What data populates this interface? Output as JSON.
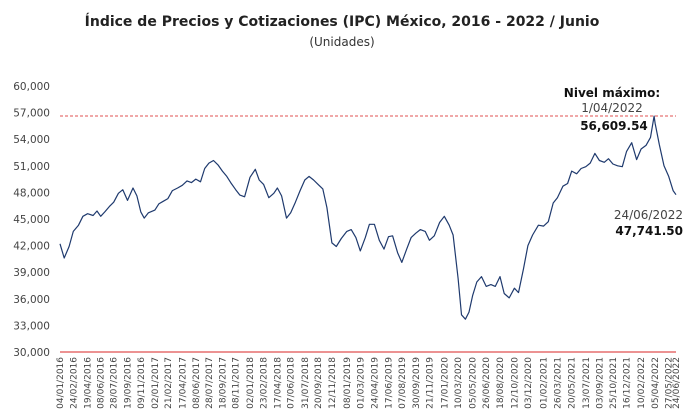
{
  "chart_data": {
    "type": "line",
    "title": "Índice de Precios y Cotizaciones (IPC) México, 2016 - 2022 / Junio",
    "subtitle": "(Unidades)",
    "xlabel": "",
    "ylabel": "",
    "ylim": [
      30000,
      60000
    ],
    "yticks": [
      "60,000",
      "57,000",
      "54,000",
      "51,000",
      "48,000",
      "45,000",
      "42,000",
      "39,000",
      "36,000",
      "33,000",
      "30,000"
    ],
    "ytick_values": [
      60000,
      57000,
      54000,
      51000,
      48000,
      45000,
      42000,
      39000,
      36000,
      33000,
      30000
    ],
    "x_ticks": [
      "04/01/2016",
      "24/02/2016",
      "19/04/2016",
      "08/06/2016",
      "28/07/2016",
      "19/09/2016",
      "09/11/2016",
      "02/01/2017",
      "21/02/2017",
      "17/04/2017",
      "08/06/2017",
      "28/07/2017",
      "18/09/2017",
      "08/11/2017",
      "02/01/2018",
      "23/02/2018",
      "17/04/2018",
      "07/06/2018",
      "31/07/2018",
      "20/09/2018",
      "12/11/2018",
      "08/01/2019",
      "01/03/2019",
      "24/04/2019",
      "17/06/2019",
      "07/08/2019",
      "30/09/2019",
      "21/11/2019",
      "17/01/2020",
      "10/03/2020",
      "05/05/2020",
      "26/06/2020",
      "18/08/2020",
      "12/10/2020",
      "03/12/2020",
      "01/02/2021",
      "26/03/2021",
      "20/05/2021",
      "13/07/2021",
      "03/09/2021",
      "25/10/2021",
      "16/12/2021",
      "10/02/2022",
      "05/04/2022",
      "27/05/2022",
      "24/06/2022"
    ],
    "grid": false,
    "legend": "none",
    "series": [
      {
        "color": "#1f3a6e",
        "x": [
          "04/01/2016",
          "20/01/2016",
          "08/02/2016",
          "24/02/2016",
          "15/03/2016",
          "01/04/2016",
          "19/04/2016",
          "10/05/2016",
          "25/05/2016",
          "08/06/2016",
          "24/06/2016",
          "11/07/2016",
          "28/07/2016",
          "15/08/2016",
          "01/09/2016",
          "19/09/2016",
          "10/10/2016",
          "25/10/2016",
          "09/11/2016",
          "22/11/2016",
          "08/12/2016",
          "02/01/2017",
          "17/01/2017",
          "03/02/2017",
          "21/02/2017",
          "10/03/2017",
          "30/03/2017",
          "17/04/2017",
          "05/05/2017",
          "22/05/2017",
          "08/06/2017",
          "26/06/2017",
          "12/07/2017",
          "28/07/2017",
          "15/08/2017",
          "01/09/2017",
          "18/09/2017",
          "05/10/2017",
          "20/10/2017",
          "08/11/2017",
          "24/11/2017",
          "12/12/2017",
          "02/01/2018",
          "22/01/2018",
          "06/02/2018",
          "23/02/2018",
          "15/03/2018",
          "03/04/2018",
          "17/04/2018",
          "03/05/2018",
          "22/05/2018",
          "07/06/2018",
          "25/06/2018",
          "13/07/2018",
          "31/07/2018",
          "16/08/2018",
          "03/09/2018",
          "20/09/2018",
          "08/10/2018",
          "24/10/2018",
          "12/11/2018",
          "29/11/2018",
          "18/12/2018",
          "08/01/2019",
          "25/01/2019",
          "12/02/2019",
          "01/03/2019",
          "20/03/2019",
          "05/04/2019",
          "24/04/2019",
          "13/05/2019",
          "31/05/2019",
          "17/06/2019",
          "03/07/2019",
          "22/07/2019",
          "07/08/2019",
          "26/08/2019",
          "12/09/2019",
          "30/09/2019",
          "17/10/2019",
          "05/11/2019",
          "21/11/2019",
          "10/12/2019",
          "30/12/2019",
          "17/01/2020",
          "05/02/2020",
          "20/02/2020",
          "10/03/2020",
          "23/03/2020",
          "07/04/2020",
          "21/04/2020",
          "05/05/2020",
          "21/05/2020",
          "08/06/2020",
          "26/06/2020",
          "14/07/2020",
          "31/07/2020",
          "18/08/2020",
          "03/09/2020",
          "22/09/2020",
          "12/10/2020",
          "28/10/2020",
          "16/11/2020",
          "03/12/2020",
          "21/12/2020",
          "12/01/2021",
          "01/02/2021",
          "19/02/2021",
          "10/03/2021",
          "26/03/2021",
          "16/04/2021",
          "04/05/2021",
          "20/05/2021",
          "08/06/2021",
          "25/06/2021",
          "13/07/2021",
          "30/07/2021",
          "17/08/2021",
          "03/09/2021",
          "22/09/2021",
          "08/10/2021",
          "25/10/2021",
          "12/11/2021",
          "30/11/2021",
          "16/12/2021",
          "05/01/2022",
          "24/01/2022",
          "10/02/2022",
          "01/03/2022",
          "18/03/2022",
          "01/04/2022",
          "05/04/2022",
          "21/04/2022",
          "09/05/2022",
          "27/05/2022",
          "13/06/2022",
          "24/06/2022"
        ],
        "y": [
          42200,
          40600,
          41900,
          43600,
          44300,
          45300,
          45600,
          45400,
          45900,
          45300,
          45800,
          46400,
          46900,
          47900,
          48300,
          47100,
          48500,
          47600,
          45800,
          45100,
          45700,
          46000,
          46700,
          47000,
          47300,
          48200,
          48500,
          48800,
          49300,
          49100,
          49500,
          49200,
          50700,
          51300,
          51600,
          51100,
          50400,
          49800,
          49100,
          48300,
          47700,
          47500,
          49700,
          50600,
          49400,
          48900,
          47400,
          47900,
          48500,
          47600,
          45100,
          45700,
          46900,
          48200,
          49400,
          49800,
          49400,
          48900,
          48400,
          46300,
          42300,
          41900,
          42800,
          43600,
          43800,
          42900,
          41400,
          42900,
          44400,
          44400,
          42600,
          41600,
          43000,
          43100,
          41200,
          40100,
          41600,
          42900,
          43400,
          43800,
          43600,
          42600,
          43100,
          44600,
          45300,
          44300,
          43200,
          38300,
          34200,
          33700,
          34500,
          36400,
          37900,
          38500,
          37400,
          37600,
          37400,
          38500,
          36600,
          36100,
          37200,
          36700,
          39400,
          42000,
          43200,
          44300,
          44200,
          44700,
          46800,
          47400,
          48700,
          49000,
          50400,
          50100,
          50700,
          50900,
          51300,
          52400,
          51600,
          51400,
          51800,
          51200,
          51000,
          50900,
          52600,
          53600,
          51700,
          52900,
          53300,
          54200,
          56609.54,
          55800,
          53400,
          51000,
          49800,
          48200,
          47741.5
        ]
      }
    ],
    "reference_lines": [
      {
        "y": 56609.54,
        "style": "dashed",
        "color": "#e05050"
      },
      {
        "y": 30000,
        "style": "solid",
        "color": "#e05050"
      }
    ],
    "annotations": {
      "max_heading": "Nivel máximo:",
      "max_date": "1/04/2022",
      "max_value": "56,609.54",
      "last_date": "24/06/2022",
      "last_value": "47,741.50"
    }
  }
}
